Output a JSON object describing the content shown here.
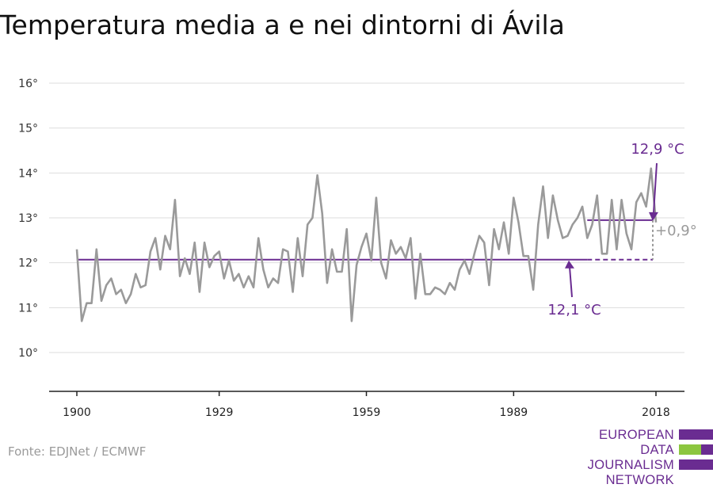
{
  "title": "Temperatura media a e nei dintorni di Ávila",
  "source": "Fonte: EDJNet / ECMWF",
  "logo": {
    "line1": "EUROPEAN",
    "line2": "DATA JOURNALISM",
    "line3": "NETWORK"
  },
  "colors": {
    "series": "#9a9a9a",
    "accent": "#6a2c91",
    "logo_green": "#8cc63f",
    "grid": "#dddddd",
    "axis": "#222222"
  },
  "chart_data": {
    "type": "line",
    "title": "Temperatura media a e nei dintorni di Ávila",
    "xlabel": "",
    "ylabel": "",
    "xlim": [
      1900,
      2018
    ],
    "ylim": [
      10,
      16
    ],
    "x_ticks": [
      1900,
      1929,
      1959,
      1989,
      2018
    ],
    "y_ticks": [
      10,
      11,
      12,
      13,
      14,
      15,
      16
    ],
    "y_tick_labels": [
      "10°",
      "11°",
      "12°",
      "13°",
      "14°",
      "15°",
      "16°"
    ],
    "grid": true,
    "series": [
      {
        "x": [
          1900,
          1901,
          1902,
          1903,
          1904,
          1905,
          1906,
          1907,
          1908,
          1909,
          1910,
          1911,
          1912,
          1913,
          1914,
          1915,
          1916,
          1917,
          1918,
          1919,
          1920,
          1921,
          1922,
          1923,
          1924,
          1925,
          1926,
          1927,
          1928,
          1929,
          1930,
          1931,
          1932,
          1933,
          1934,
          1935,
          1936,
          1937,
          1938,
          1939,
          1940,
          1941,
          1942,
          1943,
          1944,
          1945,
          1946,
          1947,
          1948,
          1949,
          1950,
          1951,
          1952,
          1953,
          1954,
          1955,
          1956,
          1957,
          1958,
          1959,
          1960,
          1961,
          1962,
          1963,
          1964,
          1965,
          1966,
          1967,
          1968,
          1969,
          1970,
          1971,
          1972,
          1973,
          1974,
          1975,
          1976,
          1977,
          1978,
          1979,
          1980,
          1981,
          1982,
          1983,
          1984,
          1985,
          1986,
          1987,
          1988,
          1989,
          1990,
          1991,
          1992,
          1993,
          1994,
          1995,
          1996,
          1997,
          1998,
          1999,
          2000,
          2001,
          2002,
          2003,
          2004,
          2005,
          2006,
          2007,
          2008,
          2009,
          2010,
          2011,
          2012,
          2013,
          2014,
          2015,
          2016,
          2017,
          2018
        ],
        "y": [
          12.3,
          10.7,
          11.1,
          11.1,
          12.3,
          11.15,
          11.5,
          11.65,
          11.3,
          11.4,
          11.1,
          11.3,
          11.75,
          11.45,
          11.5,
          12.25,
          12.55,
          11.85,
          12.6,
          12.3,
          13.4,
          11.7,
          12.1,
          11.75,
          12.45,
          11.35,
          12.45,
          11.9,
          12.15,
          12.25,
          11.65,
          12.05,
          11.6,
          11.75,
          11.45,
          11.7,
          11.45,
          12.55,
          11.85,
          11.45,
          11.65,
          11.55,
          12.3,
          12.25,
          11.35,
          12.55,
          11.7,
          12.85,
          13.0,
          13.95,
          13.1,
          11.55,
          12.3,
          11.8,
          11.8,
          12.75,
          10.7,
          11.95,
          12.35,
          12.65,
          12.05,
          13.45,
          12.0,
          11.65,
          12.5,
          12.2,
          12.35,
          12.1,
          12.55,
          11.2,
          12.2,
          11.3,
          11.3,
          11.45,
          11.4,
          11.3,
          11.55,
          11.4,
          11.85,
          12.05,
          11.75,
          12.2,
          12.6,
          12.45,
          11.5,
          12.75,
          12.3,
          12.9,
          12.2,
          13.45,
          12.9,
          12.15,
          12.15,
          11.4,
          12.85,
          13.7,
          12.55,
          13.5,
          12.95,
          12.55,
          12.6,
          12.85,
          13.0,
          13.25,
          12.55,
          12.85,
          13.5,
          12.2,
          12.2,
          13.4,
          12.3,
          13.4,
          12.65,
          12.3,
          13.35,
          13.55,
          13.25,
          14.1,
          12.9
        ]
      }
    ],
    "baseline": {
      "value": 12.07,
      "label": "12,1 °C"
    },
    "recent": {
      "value": 12.95,
      "label": "12,9 °C"
    },
    "difference_label": "+0,9°"
  }
}
